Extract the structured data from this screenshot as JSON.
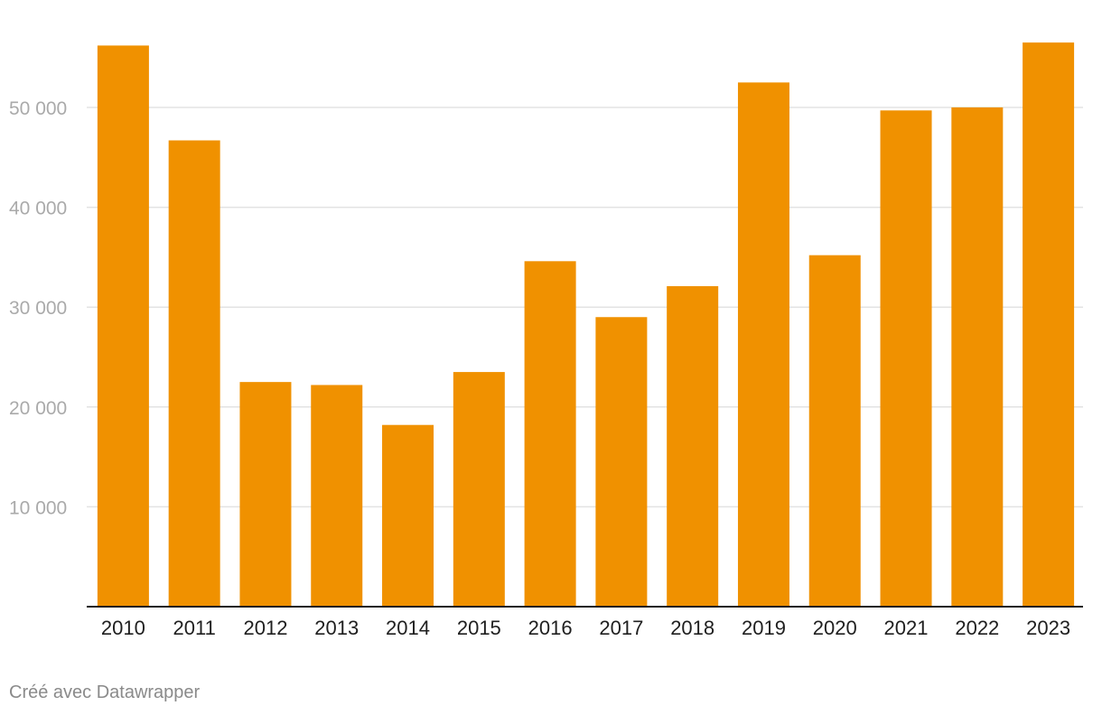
{
  "chart_data": {
    "type": "bar",
    "categories": [
      "2010",
      "2011",
      "2012",
      "2013",
      "2014",
      "2015",
      "2016",
      "2017",
      "2018",
      "2019",
      "2020",
      "2021",
      "2022",
      "2023"
    ],
    "values": [
      56200,
      46700,
      22500,
      22200,
      18200,
      23500,
      34600,
      29000,
      32100,
      52500,
      35200,
      49700,
      50000,
      56500
    ],
    "ylim": [
      0,
      58000
    ],
    "yticks": [
      10000,
      20000,
      30000,
      40000,
      50000
    ],
    "ytick_labels": [
      "10 000",
      "20 000",
      "30 000",
      "40 000",
      "50 000"
    ],
    "grid": true,
    "bar_color": "#f09100",
    "grid_color": "#e3e3e3",
    "axis_color": "#1f1f1f"
  },
  "footer": {
    "credit": "Créé avec Datawrapper"
  }
}
